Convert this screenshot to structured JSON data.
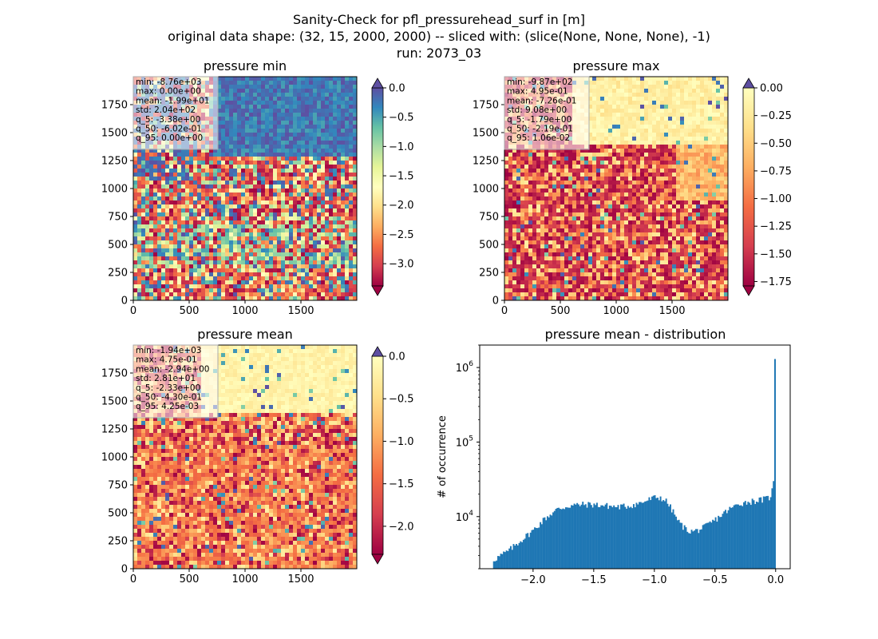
{
  "figure": {
    "title_lines": [
      "Sanity-Check for pfl_pressurehead_surf in [m]",
      "original data shape: (32, 15, 2000, 2000) -- sliced with: (slice(None, None, None), -1)",
      "run: 2073_03"
    ]
  },
  "chart_data": [
    {
      "type": "heatmap",
      "id": "pmin",
      "title": "pressure min",
      "colormap": "Spectral",
      "xticks": [
        0,
        500,
        1000,
        1500
      ],
      "yticks": [
        0,
        250,
        500,
        750,
        1000,
        1250,
        1500,
        1750
      ],
      "xlim": [
        0,
        2000
      ],
      "ylim": [
        0,
        2000
      ],
      "clim": [
        -3.38,
        0.0
      ],
      "colorbar_ticks": [
        "0.0",
        "−0.5",
        "−1.0",
        "−1.5",
        "−2.0",
        "−2.5",
        "−3.0"
      ],
      "colorbar_tick_values": [
        0.0,
        -0.5,
        -1.0,
        -1.5,
        -2.0,
        -2.5,
        -3.0
      ],
      "colorbar_extend": "both",
      "stats": [
        "min: -8.76e+03",
        "max: 0.00e+00",
        "mean: -1.99e+01",
        "std: 2.04e+02",
        "q_5: -3.38e+00",
        "q_50: -6.02e-01",
        "q_95: 0.00e+00"
      ]
    },
    {
      "type": "heatmap",
      "id": "pmax",
      "title": "pressure max",
      "colormap": "Spectral",
      "xticks": [
        0,
        500,
        1000,
        1500
      ],
      "yticks": [
        0,
        250,
        500,
        750,
        1000,
        1250,
        1500,
        1750
      ],
      "xlim": [
        0,
        2000
      ],
      "ylim": [
        0,
        2000
      ],
      "clim": [
        -1.79,
        0.0
      ],
      "colorbar_ticks": [
        "0.00",
        "−0.25",
        "−0.50",
        "−0.75",
        "−1.00",
        "−1.25",
        "−1.50",
        "−1.75"
      ],
      "colorbar_tick_values": [
        0.0,
        -0.25,
        -0.5,
        -0.75,
        -1.0,
        -1.25,
        -1.5,
        -1.75
      ],
      "colorbar_extend": "both",
      "stats": [
        "min: -9.87e+02",
        "max: 4.95e-01",
        "mean: -7.26e-01",
        "std: 9.08e+00",
        "q_5: -1.79e+00",
        "q_50: -2.19e-01",
        "q_95: 1.06e-02"
      ]
    },
    {
      "type": "heatmap",
      "id": "pmean",
      "title": "pressure mean",
      "colormap": "Spectral",
      "xticks": [
        0,
        500,
        1000,
        1500
      ],
      "yticks": [
        0,
        250,
        500,
        750,
        1000,
        1250,
        1500,
        1750
      ],
      "xlim": [
        0,
        2000
      ],
      "ylim": [
        0,
        2000
      ],
      "clim": [
        -2.33,
        0.0
      ],
      "colorbar_ticks": [
        "0.0",
        "−0.5",
        "−1.0",
        "−1.5",
        "−2.0"
      ],
      "colorbar_tick_values": [
        0.0,
        -0.5,
        -1.0,
        -1.5,
        -2.0
      ],
      "colorbar_extend": "both",
      "stats": [
        "min: -1.94e+03",
        "max: 4.75e-01",
        "mean: -2.94e+00",
        "std: 2.81e+01",
        "q_5: -2.33e+00",
        "q_50: -4.30e-01",
        "q_95: 4.25e-03"
      ]
    },
    {
      "type": "bar",
      "id": "dist",
      "title": "pressure mean - distribution",
      "ylabel": "# of occurrence",
      "xlabel": "",
      "yscale": "log",
      "color": "#1f77b4",
      "xlim": [
        -2.44,
        0.12
      ],
      "ylim": [
        2000,
        2000000
      ],
      "xticks": [
        -2.0,
        -1.5,
        -1.0,
        -0.5,
        0.0
      ],
      "xtick_labels": [
        "−2.0",
        "−1.5",
        "−1.0",
        "−0.5",
        "0.0"
      ],
      "yticks": [
        10000,
        100000,
        1000000
      ],
      "bin_range": [
        -2.33,
        0.0
      ],
      "profile_x": [
        -2.33,
        -2.2,
        -2.1,
        -2.0,
        -1.9,
        -1.8,
        -1.7,
        -1.6,
        -1.5,
        -1.4,
        -1.3,
        -1.2,
        -1.1,
        -1.0,
        -0.95,
        -0.9,
        -0.85,
        -0.8,
        -0.75,
        -0.7,
        -0.65,
        -0.6,
        -0.5,
        -0.4,
        -0.3,
        -0.2,
        -0.1,
        -0.05,
        -0.03,
        -0.015,
        -0.005,
        0.0
      ],
      "profile_y": [
        2600,
        3500,
        4800,
        6500,
        9500,
        12500,
        14000,
        14500,
        14500,
        14000,
        13500,
        14000,
        15500,
        18000,
        18000,
        16000,
        12000,
        8500,
        7000,
        6300,
        6500,
        7000,
        9000,
        12000,
        15000,
        16000,
        17000,
        18000,
        22000,
        30000,
        40000,
        1300000
      ]
    }
  ]
}
